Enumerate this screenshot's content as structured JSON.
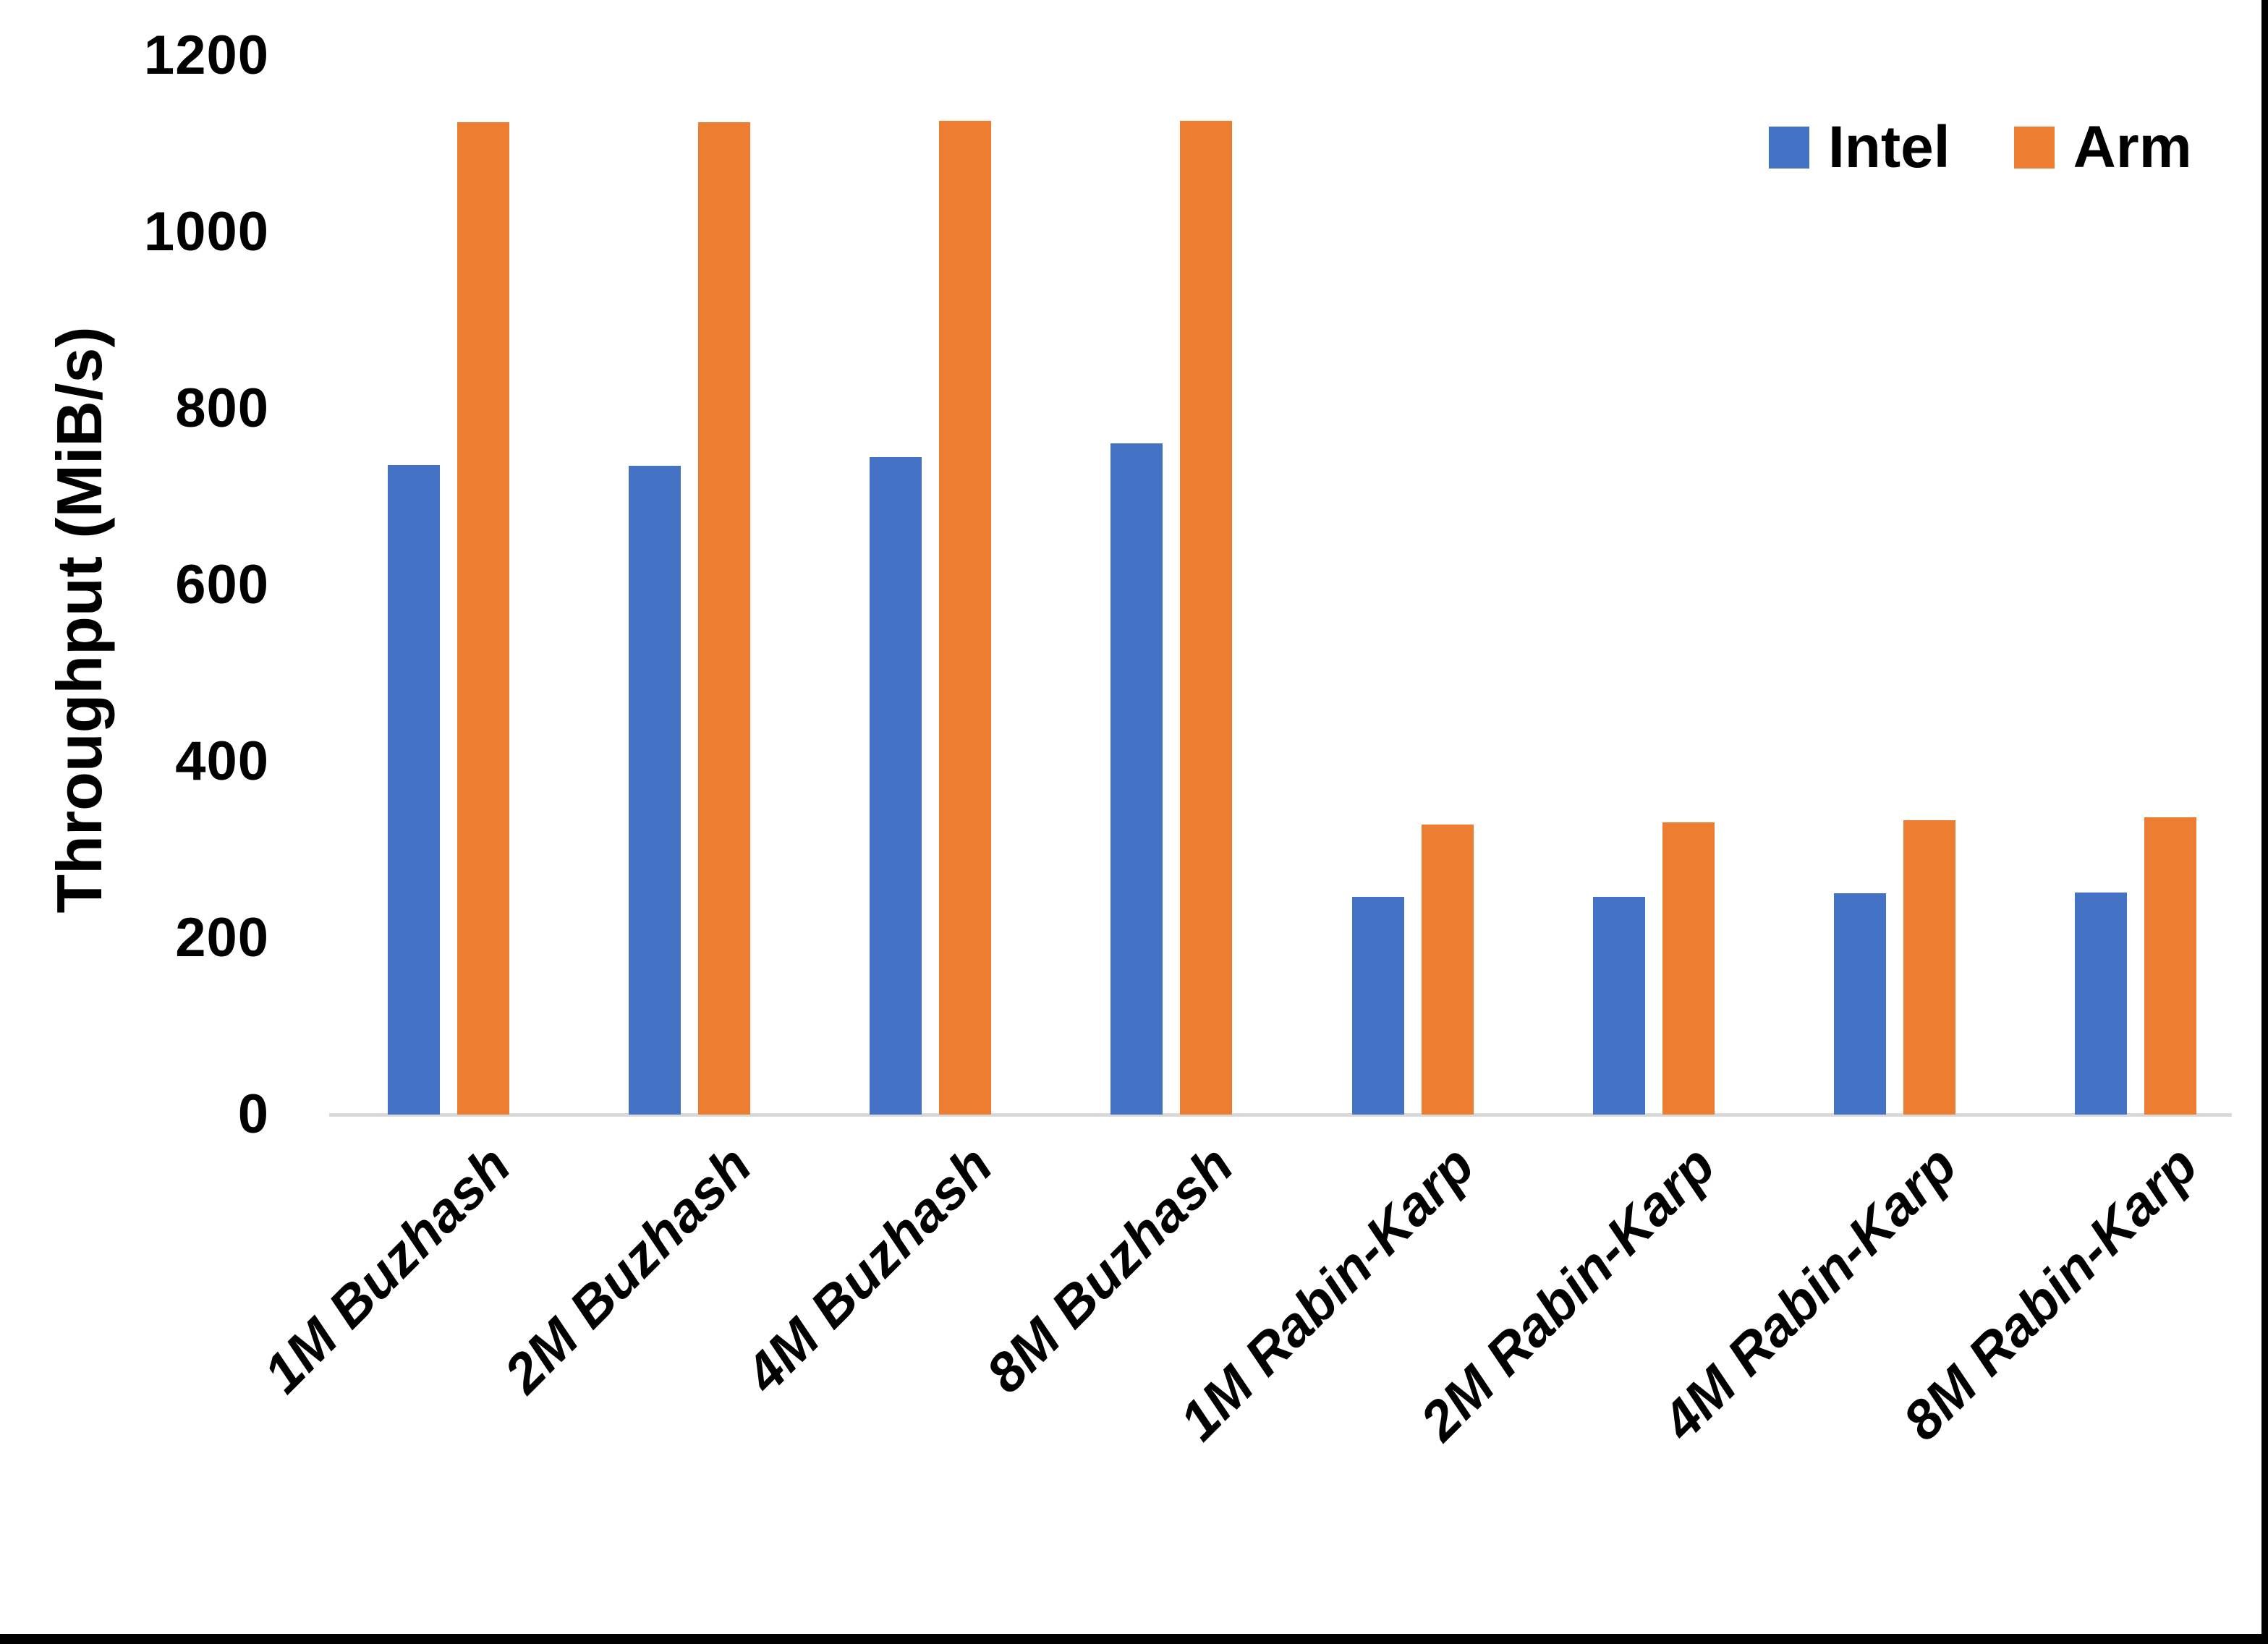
{
  "chart_data": {
    "type": "bar",
    "title": "",
    "categories": [
      "1M Buzhash",
      "2M Buzhash",
      "4M Buzhash",
      "8M Buzhash",
      "1M Rabin-Karp",
      "2M Rabin-Karp",
      "4M Rabin-Karp",
      "8M Rabin-Karp"
    ],
    "series": [
      {
        "name": "Intel",
        "color": "#4472C4",
        "values": [
          736,
          735,
          745,
          761,
          247,
          247,
          251,
          252
        ]
      },
      {
        "name": "Arm",
        "color": "#ED7D31",
        "values": [
          1125,
          1125,
          1126,
          1126,
          329,
          331,
          334,
          337
        ]
      }
    ],
    "xlabel": "",
    "ylabel": "Throughput (MiB/s)",
    "ylim": [
      0,
      1200
    ],
    "yticks": [
      0,
      200,
      400,
      600,
      800,
      1000,
      1200
    ],
    "grid": false,
    "legend_position": "top-right"
  },
  "colors": {
    "background": "#FFFFFF",
    "text": "#000000",
    "axis_line": "#D9D9D9",
    "frame_border": "#000000",
    "intel": "#4472C4",
    "arm": "#ED7D31"
  }
}
